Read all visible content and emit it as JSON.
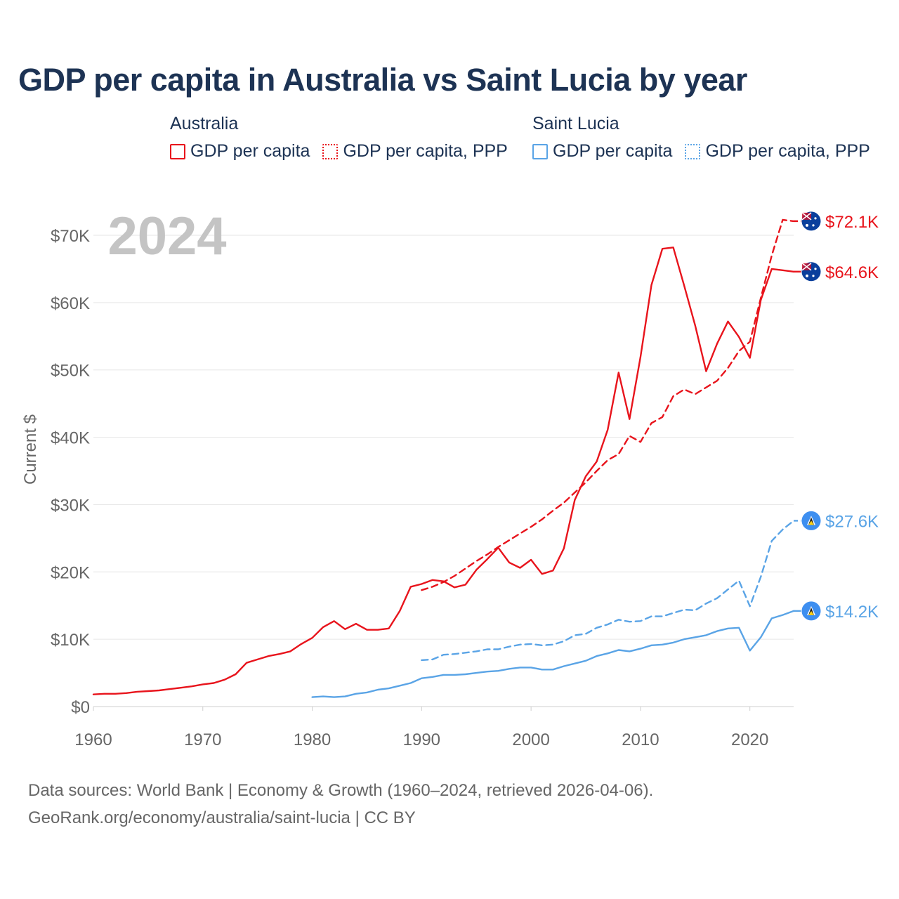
{
  "title": "GDP per capita in Australia vs Saint Lucia by year",
  "legend": {
    "groups": [
      {
        "country": "Australia",
        "color": "#e8141c",
        "items": [
          {
            "label": "GDP per capita",
            "style": "solid"
          },
          {
            "label": "GDP per capita, PPP",
            "style": "dotted"
          }
        ]
      },
      {
        "country": "Saint Lucia",
        "color": "#5aa4e6",
        "items": [
          {
            "label": "GDP per capita",
            "style": "solid"
          },
          {
            "label": "GDP per capita, PPP",
            "style": "dotted"
          }
        ]
      }
    ]
  },
  "year_watermark": "2024",
  "footer": {
    "line1": "Data sources: World Bank | Economy & Growth (1960–2024, retrieved 2026-04-06).",
    "line2": "GeoRank.org/economy/australia/saint-lucia | CC BY"
  },
  "chart_data": {
    "type": "line",
    "title": "GDP per capita in Australia vs Saint Lucia by year",
    "xlabel": "",
    "ylabel": "Current $",
    "xlim": [
      1960,
      2024
    ],
    "ylim": [
      0,
      72000
    ],
    "x_ticks": [
      1960,
      1970,
      1980,
      1990,
      2000,
      2010,
      2020
    ],
    "x_tick_labels": [
      "1960",
      "1970",
      "1980",
      "1990",
      "2000",
      "2010",
      "2020"
    ],
    "y_ticks": [
      0,
      10000,
      20000,
      30000,
      40000,
      50000,
      60000,
      70000
    ],
    "y_tick_labels": [
      "$0",
      "$10K",
      "$20K",
      "$30K",
      "$40K",
      "$50K",
      "$60K",
      "$70K"
    ],
    "grid": true,
    "series": [
      {
        "name": "Australia GDP per capita",
        "country": "Australia",
        "color": "#e8141c",
        "dashed": false,
        "end_label": "$64.6K",
        "x": [
          1960,
          1961,
          1962,
          1963,
          1964,
          1965,
          1966,
          1967,
          1968,
          1969,
          1970,
          1971,
          1972,
          1973,
          1974,
          1975,
          1976,
          1977,
          1978,
          1979,
          1980,
          1981,
          1982,
          1983,
          1984,
          1985,
          1986,
          1987,
          1988,
          1989,
          1990,
          1991,
          1992,
          1993,
          1994,
          1995,
          1996,
          1997,
          1998,
          1999,
          2000,
          2001,
          2002,
          2003,
          2004,
          2005,
          2006,
          2007,
          2008,
          2009,
          2010,
          2011,
          2012,
          2013,
          2014,
          2015,
          2016,
          2017,
          2018,
          2019,
          2020,
          2021,
          2022,
          2023,
          2024
        ],
        "values": [
          1800,
          1900,
          1900,
          2000,
          2200,
          2300,
          2400,
          2600,
          2800,
          3000,
          3300,
          3500,
          4000,
          4800,
          6500,
          7000,
          7500,
          7800,
          8200,
          9300,
          10200,
          11800,
          12700,
          11500,
          12300,
          11400,
          11400,
          11600,
          14200,
          17800,
          18200,
          18800,
          18600,
          17700,
          18100,
          20300,
          21900,
          23600,
          21400,
          20600,
          21800,
          19700,
          20200,
          23500,
          30700,
          34200,
          36400,
          41100,
          49600,
          42700,
          51900,
          62600,
          68000,
          68200,
          62500,
          56600,
          49800,
          53900,
          57200,
          54900,
          51800,
          60400,
          65000,
          64800,
          64600
        ]
      },
      {
        "name": "Australia GDP per capita, PPP",
        "country": "Australia",
        "color": "#e8141c",
        "dashed": true,
        "end_label": "$72.1K",
        "x": [
          1990,
          1991,
          1992,
          1993,
          1994,
          1995,
          1996,
          1997,
          1998,
          1999,
          2000,
          2001,
          2002,
          2003,
          2004,
          2005,
          2006,
          2007,
          2008,
          2009,
          2010,
          2011,
          2012,
          2013,
          2014,
          2015,
          2016,
          2017,
          2018,
          2019,
          2020,
          2021,
          2022,
          2023,
          2024
        ],
        "values": [
          17300,
          17800,
          18500,
          19400,
          20500,
          21600,
          22600,
          23700,
          24700,
          25700,
          26700,
          27800,
          29100,
          30300,
          31800,
          33300,
          35000,
          36600,
          37500,
          40200,
          39300,
          42100,
          43000,
          46100,
          47100,
          46400,
          47400,
          48400,
          50300,
          52800,
          54200,
          60700,
          67000,
          72300,
          72100
        ]
      },
      {
        "name": "Saint Lucia GDP per capita",
        "country": "Saint Lucia",
        "color": "#5aa4e6",
        "dashed": false,
        "end_label": "$14.2K",
        "x": [
          1980,
          1981,
          1982,
          1983,
          1984,
          1985,
          1986,
          1987,
          1988,
          1989,
          1990,
          1991,
          1992,
          1993,
          1994,
          1995,
          1996,
          1997,
          1998,
          1999,
          2000,
          2001,
          2002,
          2003,
          2004,
          2005,
          2006,
          2007,
          2008,
          2009,
          2010,
          2011,
          2012,
          2013,
          2014,
          2015,
          2016,
          2017,
          2018,
          2019,
          2020,
          2021,
          2022,
          2023,
          2024
        ],
        "values": [
          1400,
          1500,
          1400,
          1500,
          1900,
          2100,
          2500,
          2700,
          3100,
          3500,
          4200,
          4400,
          4700,
          4700,
          4800,
          5000,
          5200,
          5300,
          5600,
          5800,
          5800,
          5500,
          5500,
          6000,
          6400,
          6800,
          7500,
          7900,
          8400,
          8200,
          8600,
          9100,
          9200,
          9500,
          10000,
          10300,
          10600,
          11200,
          11600,
          11700,
          8300,
          10300,
          13100,
          13600,
          14200
        ]
      },
      {
        "name": "Saint Lucia GDP per capita, PPP",
        "country": "Saint Lucia",
        "color": "#5aa4e6",
        "dashed": true,
        "end_label": "$27.6K",
        "x": [
          1990,
          1991,
          1992,
          1993,
          1994,
          1995,
          1996,
          1997,
          1998,
          1999,
          2000,
          2001,
          2002,
          2003,
          2004,
          2005,
          2006,
          2007,
          2008,
          2009,
          2010,
          2011,
          2012,
          2013,
          2014,
          2015,
          2016,
          2017,
          2018,
          2019,
          2020,
          2021,
          2022,
          2023,
          2024
        ],
        "values": [
          6900,
          7000,
          7700,
          7800,
          8000,
          8200,
          8500,
          8500,
          8900,
          9200,
          9300,
          9100,
          9200,
          9700,
          10600,
          10800,
          11700,
          12200,
          12900,
          12600,
          12700,
          13400,
          13400,
          13900,
          14400,
          14300,
          15300,
          16100,
          17400,
          18700,
          14900,
          19300,
          24600,
          26300,
          27600
        ]
      }
    ]
  }
}
